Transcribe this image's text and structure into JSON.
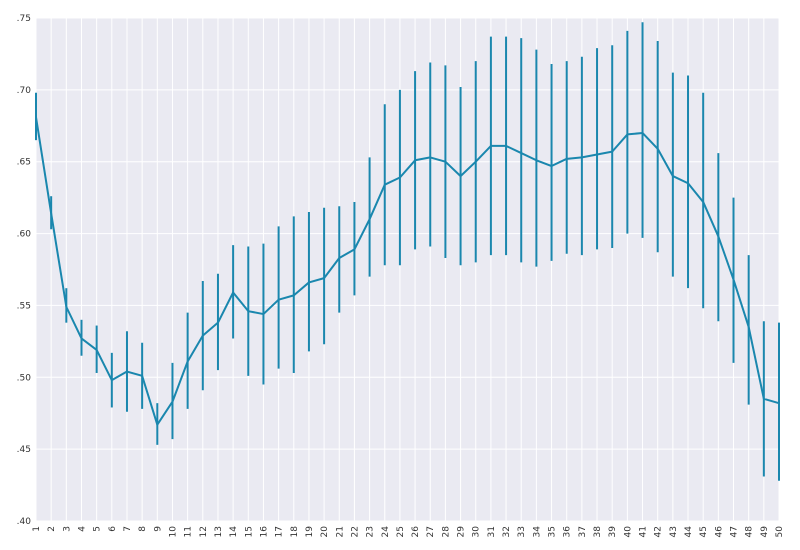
{
  "chart_data": {
    "type": "line",
    "title": "",
    "xlabel": "",
    "ylabel": "",
    "grid": true,
    "colors": {
      "background": "#EAEAF2",
      "grid": "#FFFFFF",
      "series": "#1A87AE"
    },
    "xlim": [
      1,
      50
    ],
    "ylim": [
      0.4,
      0.75
    ],
    "x": [
      1,
      2,
      3,
      4,
      5,
      6,
      7,
      8,
      9,
      10,
      11,
      12,
      13,
      14,
      15,
      16,
      17,
      18,
      19,
      20,
      21,
      22,
      23,
      24,
      25,
      26,
      27,
      28,
      29,
      30,
      31,
      32,
      33,
      34,
      35,
      36,
      37,
      38,
      39,
      40,
      41,
      42,
      43,
      44,
      45,
      46,
      47,
      48,
      49,
      50
    ],
    "x_tick_labels": [
      "1",
      "2",
      "3",
      "4",
      "5",
      "6",
      "7",
      "8",
      "9",
      "10",
      "11",
      "12",
      "13",
      "14",
      "15",
      "16",
      "17",
      "18",
      "19",
      "20",
      "21",
      "22",
      "23",
      "24",
      "25",
      "26",
      "27",
      "28",
      "29",
      "30",
      "31",
      "32",
      "33",
      "34",
      "35",
      "36",
      "37",
      "38",
      "39",
      "40",
      "41",
      "42",
      "43",
      "44",
      "45",
      "46",
      "47",
      "48",
      "49",
      "50"
    ],
    "y_ticks": [
      0.4,
      0.45,
      0.5,
      0.55,
      0.6,
      0.65,
      0.7,
      0.75
    ],
    "y_tick_labels": [
      ".40",
      ".45",
      ".50",
      ".55",
      ".60",
      ".65",
      ".70",
      ".75"
    ],
    "series": [
      {
        "values": [
          0.681,
          0.614,
          0.549,
          0.527,
          0.519,
          0.498,
          0.504,
          0.501,
          0.467,
          0.483,
          0.511,
          0.529,
          0.538,
          0.559,
          0.546,
          0.544,
          0.554,
          0.557,
          0.566,
          0.569,
          0.583,
          0.589,
          0.61,
          0.634,
          0.639,
          0.651,
          0.653,
          0.65,
          0.64,
          0.65,
          0.661,
          0.661,
          0.656,
          0.651,
          0.647,
          0.652,
          0.653,
          0.655,
          0.657,
          0.669,
          0.67,
          0.659,
          0.64,
          0.635,
          0.622,
          0.598,
          0.568,
          0.535,
          0.485,
          0.482
        ],
        "lower": [
          0.665,
          0.603,
          0.538,
          0.515,
          0.503,
          0.479,
          0.476,
          0.478,
          0.453,
          0.457,
          0.478,
          0.491,
          0.505,
          0.527,
          0.501,
          0.495,
          0.506,
          0.503,
          0.518,
          0.523,
          0.545,
          0.557,
          0.57,
          0.578,
          0.578,
          0.589,
          0.591,
          0.583,
          0.578,
          0.58,
          0.585,
          0.585,
          0.58,
          0.577,
          0.581,
          0.586,
          0.585,
          0.589,
          0.59,
          0.6,
          0.597,
          0.587,
          0.57,
          0.562,
          0.548,
          0.539,
          0.51,
          0.481,
          0.431,
          0.428
        ],
        "upper": [
          0.698,
          0.626,
          0.562,
          0.54,
          0.536,
          0.517,
          0.532,
          0.524,
          0.482,
          0.51,
          0.545,
          0.567,
          0.572,
          0.592,
          0.591,
          0.593,
          0.605,
          0.612,
          0.615,
          0.618,
          0.619,
          0.622,
          0.653,
          0.69,
          0.7,
          0.713,
          0.719,
          0.717,
          0.702,
          0.72,
          0.737,
          0.737,
          0.736,
          0.728,
          0.718,
          0.72,
          0.723,
          0.729,
          0.731,
          0.741,
          0.747,
          0.734,
          0.712,
          0.71,
          0.698,
          0.656,
          0.625,
          0.585,
          0.539,
          0.538
        ]
      }
    ]
  }
}
